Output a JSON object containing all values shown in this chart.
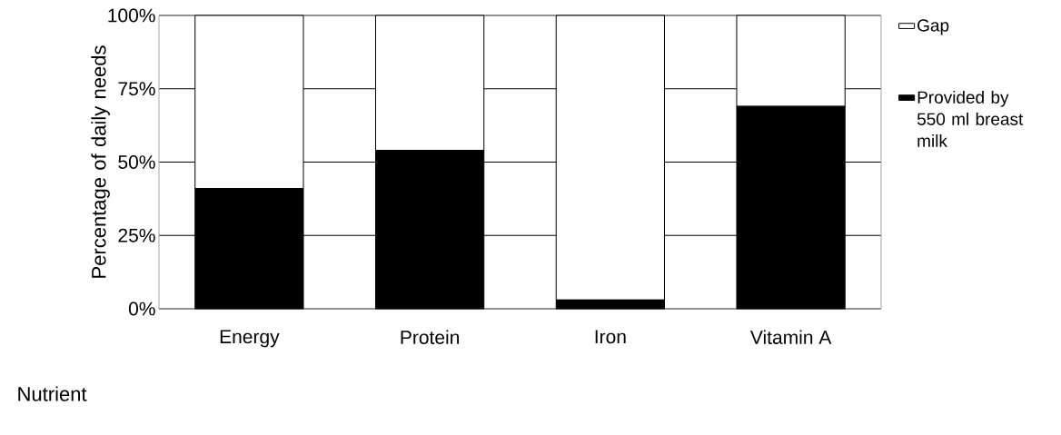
{
  "chart_data": {
    "type": "bar",
    "stacked": true,
    "xlabel": "Nutrient",
    "ylabel": "Percentage of daily needs",
    "categories": [
      "Energy",
      "Protein",
      "Iron",
      "Vitamin A"
    ],
    "series": [
      {
        "name": "Provided by 550 ml breast milk",
        "color": "#000000",
        "values": [
          41,
          54,
          3,
          69
        ]
      },
      {
        "name": "Gap",
        "color": "#ffffff",
        "values": [
          59,
          46,
          97,
          31
        ]
      }
    ],
    "ylim": [
      0,
      100
    ],
    "yticks": [
      {
        "value": 0,
        "label": "0%"
      },
      {
        "value": 25,
        "label": "25%"
      },
      {
        "value": 50,
        "label": "50%"
      },
      {
        "value": 75,
        "label": "75%"
      },
      {
        "value": 100,
        "label": "100%"
      }
    ],
    "grid": "y",
    "legend": "right"
  }
}
